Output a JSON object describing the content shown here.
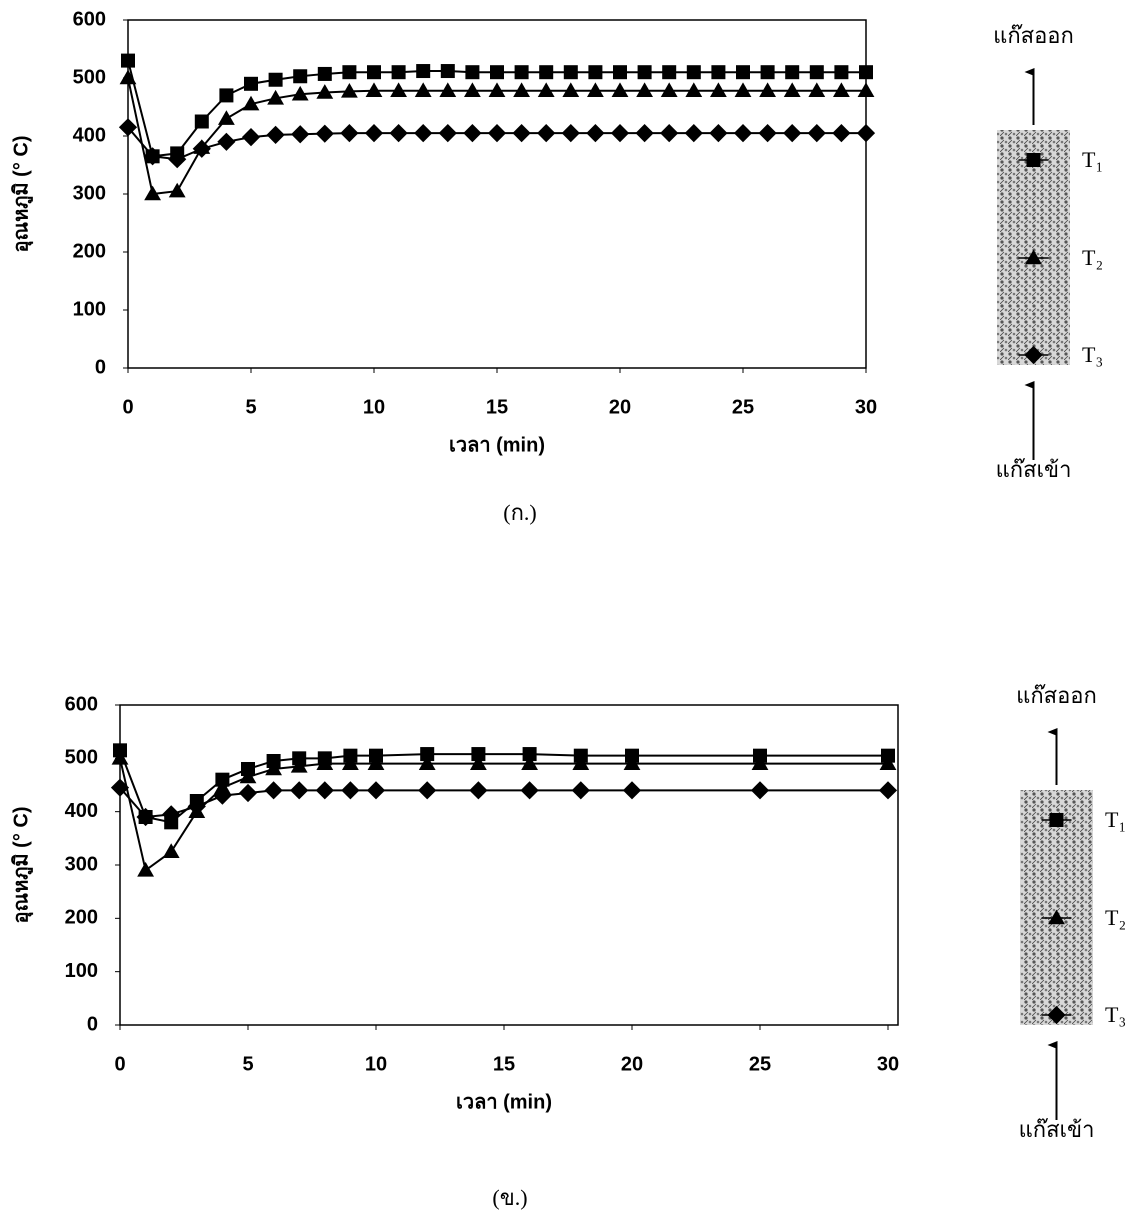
{
  "chart_data": [
    {
      "type": "line",
      "caption": "(ก.)",
      "x_label": "เวลา (min)",
      "y_label": "อุณหภูมิ (° C)",
      "x": [
        0,
        1,
        2,
        3,
        4,
        5,
        6,
        7,
        8,
        9,
        10,
        11,
        12,
        13,
        14,
        15,
        16,
        17,
        18,
        19,
        20,
        21,
        22,
        23,
        24,
        25,
        26,
        27,
        28,
        29,
        30
      ],
      "series": [
        {
          "name": "T₁",
          "color": "#000000",
          "marker": "square",
          "values": [
            530,
            365,
            370,
            425,
            470,
            490,
            497,
            503,
            507,
            510,
            510,
            510,
            512,
            512,
            510,
            510,
            510,
            510,
            510,
            510,
            510,
            510,
            510,
            510,
            510,
            510,
            510,
            510,
            510,
            510,
            510
          ]
        },
        {
          "name": "T₂",
          "color": "#000000",
          "marker": "triangle",
          "values": [
            500,
            300,
            305,
            380,
            430,
            455,
            465,
            472,
            475,
            477,
            478,
            478,
            478,
            478,
            478,
            478,
            478,
            478,
            478,
            478,
            478,
            478,
            478,
            478,
            478,
            478,
            478,
            478,
            478,
            478,
            478
          ]
        },
        {
          "name": "T₃",
          "color": "#000000",
          "marker": "diamond",
          "values": [
            415,
            365,
            360,
            378,
            390,
            398,
            402,
            403,
            404,
            405,
            405,
            405,
            405,
            405,
            405,
            405,
            405,
            405,
            405,
            405,
            405,
            405,
            405,
            405,
            405,
            405,
            405,
            405,
            405,
            405,
            405
          ]
        }
      ],
      "xlim": [
        0,
        30
      ],
      "xticks": [
        0,
        5,
        10,
        15,
        20,
        25,
        30
      ],
      "ylim": [
        0,
        600
      ],
      "yticks": [
        0,
        100,
        200,
        300,
        400,
        500,
        600
      ],
      "outlet_label": "แก๊สออก",
      "inlet_label": "แก๊สเข้า"
    },
    {
      "type": "line",
      "caption": "(ข.)",
      "x_label": "เวลา (min)",
      "y_label": "อุณหภูมิ (° C)",
      "x": [
        0,
        1,
        2,
        3,
        4,
        5,
        6,
        7,
        8,
        9,
        10,
        12,
        14,
        16,
        18,
        20,
        25,
        30
      ],
      "series": [
        {
          "name": "T₁",
          "color": "#000000",
          "marker": "square",
          "values": [
            515,
            390,
            380,
            420,
            460,
            480,
            495,
            500,
            500,
            505,
            505,
            508,
            508,
            508,
            505,
            505,
            505,
            505
          ]
        },
        {
          "name": "T₂",
          "color": "#000000",
          "marker": "triangle",
          "values": [
            500,
            290,
            325,
            400,
            445,
            465,
            480,
            485,
            490,
            490,
            490,
            490,
            490,
            490,
            490,
            490,
            490,
            490
          ]
        },
        {
          "name": "T₃",
          "color": "#000000",
          "marker": "diamond",
          "values": [
            445,
            390,
            395,
            410,
            430,
            435,
            440,
            440,
            440,
            440,
            440,
            440,
            440,
            440,
            440,
            440,
            440,
            440
          ]
        }
      ],
      "xlim": [
        0,
        30
      ],
      "xticks": [
        0,
        5,
        10,
        15,
        20,
        25,
        30
      ],
      "ylim": [
        0,
        600
      ],
      "yticks": [
        0,
        100,
        200,
        300,
        400,
        500,
        600
      ],
      "outlet_label": "แก๊สออก",
      "inlet_label": "แก๊สเข้า"
    }
  ]
}
